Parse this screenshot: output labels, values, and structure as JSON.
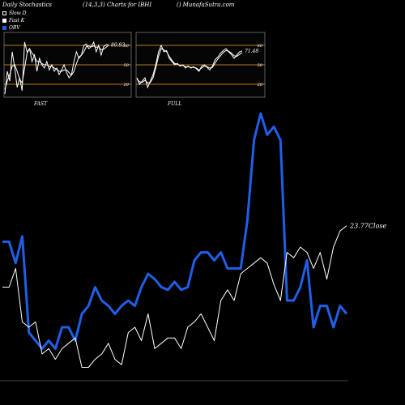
{
  "header": {
    "left": "Daily Stochastics",
    "center": "(14,3,3) Charts for IBHI",
    "right": "() MunafaSutra.com"
  },
  "legend": {
    "items": [
      {
        "label": "Slow D",
        "color": "#000000",
        "style": "hollow"
      },
      {
        "label": "Fast K",
        "color": "#ffffff",
        "style": "solid"
      },
      {
        "label": "OBV",
        "color": "#1f5fe8",
        "style": "solid"
      }
    ]
  },
  "colors": {
    "background": "#000000",
    "panel_bg": "#050505",
    "level_line": "#b57a1c",
    "stoch_line": "#ffffff",
    "obv": "#1f5fe8",
    "price": "#ffffff"
  },
  "chart_data": [
    {
      "type": "line",
      "name": "fast-stochastics",
      "label": "FAST",
      "last_value_label": "80.93",
      "levels": [
        {
          "value": 80,
          "label": "80"
        },
        {
          "value": 50,
          "label": "50"
        },
        {
          "value": 20,
          "label": "20"
        }
      ],
      "ylim": [
        0,
        100
      ],
      "series": [
        {
          "role": "fast-k",
          "values": [
            5,
            40,
            25,
            70,
            45,
            15,
            30,
            10,
            85,
            70,
            75,
            55,
            65,
            40,
            60,
            50,
            45,
            55,
            42,
            50,
            40,
            45,
            35,
            42,
            50,
            38,
            30,
            35,
            55,
            70,
            60,
            65,
            80,
            82,
            75,
            78,
            85,
            70,
            80,
            65,
            78,
            81,
            80.93
          ]
        },
        {
          "role": "slow-d",
          "values": [
            12,
            25,
            35,
            48,
            50,
            40,
            28,
            22,
            45,
            68,
            75,
            68,
            63,
            55,
            55,
            52,
            50,
            50,
            47,
            48,
            45,
            43,
            40,
            40,
            42,
            42,
            38,
            34,
            40,
            52,
            62,
            65,
            70,
            78,
            79,
            78,
            79,
            77,
            78,
            73,
            74,
            77,
            80
          ]
        }
      ]
    },
    {
      "type": "line",
      "name": "full-stochastics",
      "label": "FULL",
      "last_value_label": "71.48",
      "levels": [
        {
          "value": 80,
          "label": "80"
        },
        {
          "value": 50,
          "label": "50"
        },
        {
          "value": 20,
          "label": "20"
        }
      ],
      "ylim": [
        0,
        100
      ],
      "series": [
        {
          "role": "full-k",
          "values": [
            30,
            20,
            25,
            30,
            15,
            25,
            35,
            50,
            70,
            80,
            70,
            72,
            60,
            55,
            50,
            52,
            48,
            50,
            45,
            48,
            45,
            47,
            44,
            40,
            48,
            50,
            46,
            42,
            48,
            58,
            62,
            68,
            72,
            75,
            70,
            66,
            60,
            65,
            70,
            71.48
          ]
        },
        {
          "role": "full-d",
          "values": [
            28,
            24,
            23,
            26,
            22,
            23,
            30,
            45,
            63,
            75,
            73,
            70,
            63,
            57,
            52,
            51,
            49,
            49,
            47,
            47,
            46,
            46,
            45,
            42,
            45,
            48,
            47,
            45,
            46,
            53,
            59,
            64,
            69,
            72,
            71,
            68,
            64,
            63,
            66,
            69
          ]
        }
      ]
    },
    {
      "type": "line",
      "name": "obv-and-price",
      "close_label": "23.77Close",
      "series": [
        {
          "name": "OBV",
          "role": "obv",
          "values": [
            52,
            52,
            44,
            54,
            18,
            15,
            12,
            15,
            12,
            20,
            20,
            15,
            25,
            28,
            35,
            30,
            28,
            25,
            28,
            30,
            28,
            35,
            40,
            38,
            35,
            34,
            37,
            34,
            35,
            45,
            48,
            48,
            45,
            48,
            42,
            42,
            42,
            60,
            90,
            100,
            92,
            95,
            90,
            30,
            30,
            35,
            45,
            20,
            28,
            28,
            20,
            28,
            25
          ]
        },
        {
          "role": "price",
          "values": [
            35,
            35,
            42,
            22,
            20,
            22,
            10,
            12,
            8,
            12,
            14,
            16,
            5,
            5,
            8,
            10,
            14,
            8,
            6,
            18,
            20,
            15,
            25,
            12,
            14,
            16,
            16,
            12,
            20,
            22,
            25,
            20,
            15,
            30,
            34,
            30,
            40,
            42,
            44,
            46,
            44,
            36,
            30,
            48,
            46,
            50,
            48,
            42,
            48,
            38,
            50,
            56,
            58
          ]
        }
      ]
    }
  ]
}
